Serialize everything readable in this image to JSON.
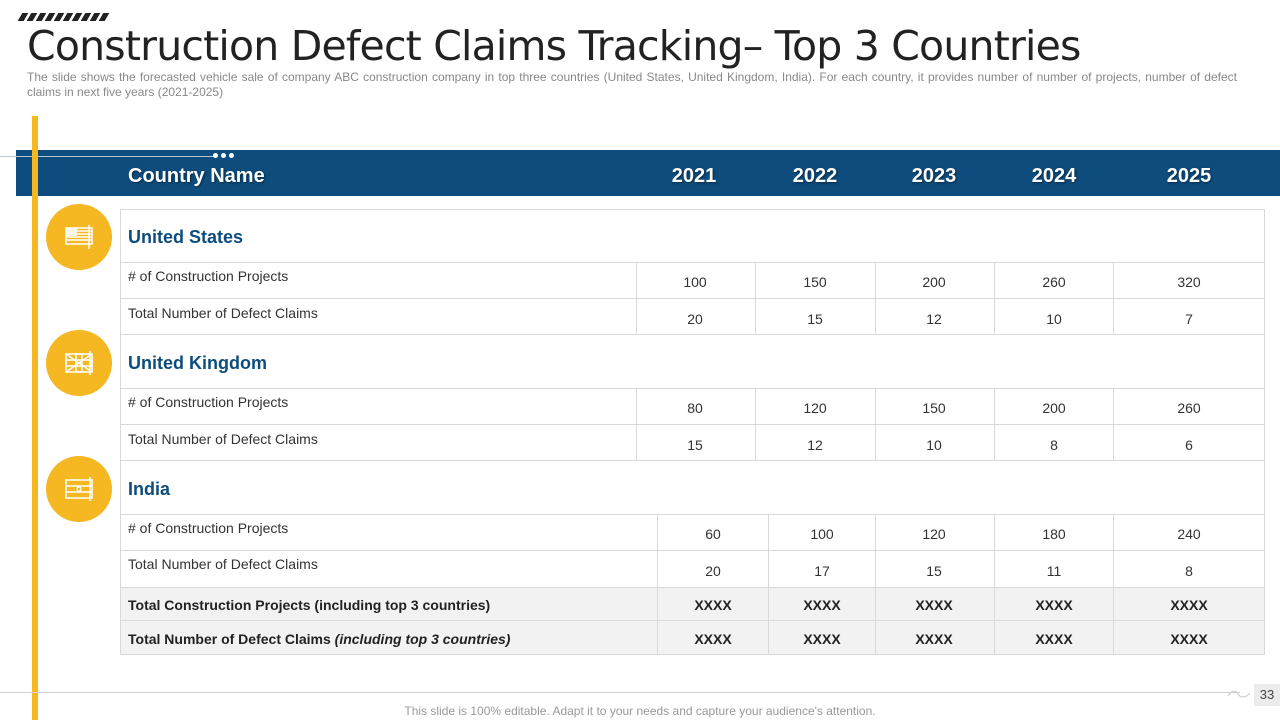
{
  "title": "Construction Defect Claims Tracking– Top 3 Countries",
  "subtitle": "The slide shows the forecasted vehicle sale of company ABC construction company in top three countries (United States, United Kingdom, India). For each country, it provides number of number of projects, number of defect claims in next five years (2021-2025)",
  "table": {
    "header_label": "Country Name",
    "years": [
      "2021",
      "2022",
      "2023",
      "2024",
      "2025"
    ],
    "countries": [
      {
        "name": "United States",
        "icon": "us-flag-icon",
        "projects_label": "# of Construction Projects",
        "projects": [
          "100",
          "150",
          "200",
          "260",
          "320"
        ],
        "claims_label": "Total Number of Defect Claims",
        "claims": [
          "20",
          "15",
          "12",
          "10",
          "7"
        ]
      },
      {
        "name": "United Kingdom",
        "icon": "uk-flag-icon",
        "projects_label": "# of Construction Projects",
        "projects": [
          "80",
          "120",
          "150",
          "200",
          "260"
        ],
        "claims_label": "Total Number of Defect Claims",
        "claims": [
          "15",
          "12",
          "10",
          "8",
          "6"
        ]
      },
      {
        "name": "India",
        "icon": "india-flag-icon",
        "projects_label": "# of Construction Projects",
        "projects": [
          "60",
          "100",
          "120",
          "180",
          "240"
        ],
        "claims_label": "Total Number of Defect Claims",
        "claims": [
          "20",
          "17",
          "15",
          "11",
          "8"
        ]
      }
    ],
    "totals": [
      {
        "label": "Total Construction Projects (including top 3 countries)",
        "values": [
          "XXXX",
          "XXXX",
          "XXXX",
          "XXXX",
          "XXXX"
        ]
      },
      {
        "label_main": "Total Number of Defect Claims ",
        "label_italic": "(including top 3 countries)",
        "values": [
          "XXXX",
          "XXXX",
          "XXXX",
          "XXXX",
          "XXXX"
        ]
      }
    ]
  },
  "footer": "This slide is 100% editable. Adapt it to your needs and capture your audience's attention.",
  "page_number": "33",
  "colors": {
    "accent": "#f5b823",
    "header": "#0d4c7c",
    "country_text": "#0d4c7c"
  }
}
